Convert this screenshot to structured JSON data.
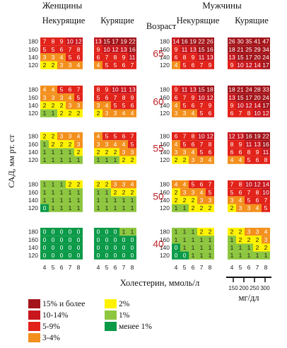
{
  "chart_data": {
    "type": "heatmap",
    "headers": {
      "women": "Женщины",
      "men": "Мужчины",
      "nonsmoking": "Некурящие",
      "smoking": "Курящие",
      "age": "Возраст"
    },
    "ylabel": "САД, мм рт. ст",
    "xlabel": "Холестерин, ммоль/л",
    "row_ticks": [
      "180",
      "160",
      "140",
      "120"
    ],
    "col_ticks": [
      "4",
      "5",
      "6",
      "7",
      "8"
    ],
    "mg_ticks": [
      "150",
      "200",
      "250",
      "300"
    ],
    "mg_unit": "мг/дл",
    "ages": [
      "65",
      "60",
      "55",
      "50",
      "40"
    ],
    "colors": {
      "c15": "#a3151a",
      "c10": "#c8161d",
      "c5": "#e2231a",
      "c3": "#f3901d",
      "c2": "#fff200",
      "c1": "#8dc63f",
      "c0": "#0b9a48"
    },
    "legend": [
      {
        "color": "#a3151a",
        "label": "15% и более"
      },
      {
        "color": "#c8161d",
        "label": "10-14%"
      },
      {
        "color": "#e2231a",
        "label": "5-9%"
      },
      {
        "color": "#f3901d",
        "label": "3-4%"
      },
      {
        "color": "#fff200",
        "label": "2%"
      },
      {
        "color": "#8dc63f",
        "label": "1%"
      },
      {
        "color": "#0b9a48",
        "label": "менее 1%"
      }
    ],
    "panels": {
      "women_nonsmoking": [
        [
          [
            7,
            8,
            9,
            10,
            12
          ],
          [
            5,
            5,
            6,
            7,
            8
          ],
          [
            3,
            3,
            4,
            5,
            6
          ],
          [
            2,
            2,
            3,
            3,
            4
          ]
        ],
        [
          [
            4,
            4,
            5,
            6,
            7
          ],
          [
            3,
            3,
            3,
            4,
            5
          ],
          [
            2,
            2,
            2,
            3,
            3
          ],
          [
            1,
            1,
            2,
            2,
            2
          ]
        ],
        [
          [
            2,
            2,
            3,
            3,
            4
          ],
          [
            1,
            2,
            2,
            2,
            3
          ],
          [
            1,
            1,
            1,
            1,
            2
          ],
          [
            1,
            1,
            1,
            1,
            1
          ]
        ],
        [
          [
            1,
            1,
            1,
            2,
            2
          ],
          [
            1,
            1,
            1,
            1,
            1
          ],
          [
            1,
            1,
            1,
            1,
            1
          ],
          [
            0,
            1,
            1,
            1,
            1
          ]
        ],
        [
          [
            0,
            0,
            0,
            0,
            0
          ],
          [
            0,
            0,
            0,
            0,
            0
          ],
          [
            0,
            0,
            0,
            0,
            0
          ],
          [
            0,
            0,
            0,
            0,
            0
          ]
        ]
      ],
      "women_smoking": [
        [
          [
            13,
            15,
            17,
            19,
            22
          ],
          [
            9,
            10,
            12,
            13,
            16
          ],
          [
            6,
            7,
            8,
            9,
            11
          ],
          [
            4,
            5,
            5,
            6,
            7
          ]
        ],
        [
          [
            8,
            9,
            10,
            11,
            13
          ],
          [
            5,
            6,
            7,
            8,
            9
          ],
          [
            3,
            4,
            5,
            5,
            6
          ],
          [
            2,
            3,
            3,
            4,
            4
          ]
        ],
        [
          [
            4,
            5,
            5,
            6,
            7
          ],
          [
            3,
            3,
            4,
            4,
            5
          ],
          [
            2,
            2,
            2,
            3,
            3
          ],
          [
            1,
            1,
            1,
            2,
            2
          ]
        ],
        [
          [
            2,
            2,
            3,
            3,
            4
          ],
          [
            1,
            1,
            2,
            2,
            2
          ],
          [
            1,
            1,
            1,
            1,
            1
          ],
          [
            1,
            1,
            1,
            1,
            1
          ]
        ],
        [
          [
            0,
            0,
            0,
            1,
            1
          ],
          [
            0,
            0,
            0,
            0,
            0
          ],
          [
            0,
            0,
            0,
            0,
            0
          ],
          [
            0,
            0,
            0,
            0,
            0
          ]
        ]
      ],
      "men_nonsmoking": [
        [
          [
            14,
            16,
            19,
            22,
            26
          ],
          [
            9,
            11,
            13,
            15,
            16
          ],
          [
            6,
            8,
            9,
            11,
            13
          ],
          [
            4,
            5,
            6,
            7,
            9
          ]
        ],
        [
          [
            9,
            11,
            13,
            15,
            18
          ],
          [
            6,
            7,
            9,
            10,
            12
          ],
          [
            4,
            5,
            6,
            7,
            9
          ],
          [
            3,
            3,
            4,
            5,
            6
          ]
        ],
        [
          [
            6,
            7,
            8,
            10,
            12
          ],
          [
            4,
            5,
            6,
            7,
            8
          ],
          [
            3,
            3,
            4,
            5,
            6
          ],
          [
            2,
            2,
            3,
            3,
            4
          ]
        ],
        [
          [
            4,
            4,
            5,
            6,
            7
          ],
          [
            2,
            3,
            3,
            4,
            5
          ],
          [
            2,
            2,
            2,
            3,
            3
          ],
          [
            1,
            1,
            2,
            2,
            2
          ]
        ],
        [
          [
            1,
            1,
            1,
            2,
            2
          ],
          [
            1,
            1,
            1,
            1,
            1
          ],
          [
            0,
            1,
            1,
            1,
            1
          ],
          [
            0,
            0,
            1,
            1,
            1
          ]
        ]
      ],
      "men_smoking": [
        [
          [
            26,
            30,
            35,
            41,
            47
          ],
          [
            18,
            21,
            25,
            29,
            34
          ],
          [
            13,
            15,
            17,
            20,
            24
          ],
          [
            9,
            10,
            12,
            14,
            17
          ]
        ],
        [
          [
            18,
            21,
            24,
            28,
            33
          ],
          [
            13,
            15,
            17,
            20,
            24
          ],
          [
            9,
            10,
            12,
            14,
            17
          ],
          [
            6,
            7,
            8,
            10,
            12
          ]
        ],
        [
          [
            12,
            13,
            16,
            19,
            22
          ],
          [
            8,
            9,
            11,
            13,
            16
          ],
          [
            6,
            6,
            8,
            9,
            11
          ],
          [
            4,
            4,
            5,
            6,
            8
          ]
        ],
        [
          [
            7,
            8,
            10,
            12,
            14
          ],
          [
            5,
            6,
            7,
            8,
            10
          ],
          [
            3,
            4,
            5,
            6,
            7
          ],
          [
            2,
            3,
            3,
            4,
            5
          ]
        ],
        [
          [
            2,
            2,
            3,
            3,
            4
          ],
          [
            1,
            2,
            2,
            2,
            3
          ],
          [
            1,
            1,
            1,
            2,
            2
          ],
          [
            1,
            1,
            1,
            1,
            1
          ]
        ]
      ]
    }
  }
}
